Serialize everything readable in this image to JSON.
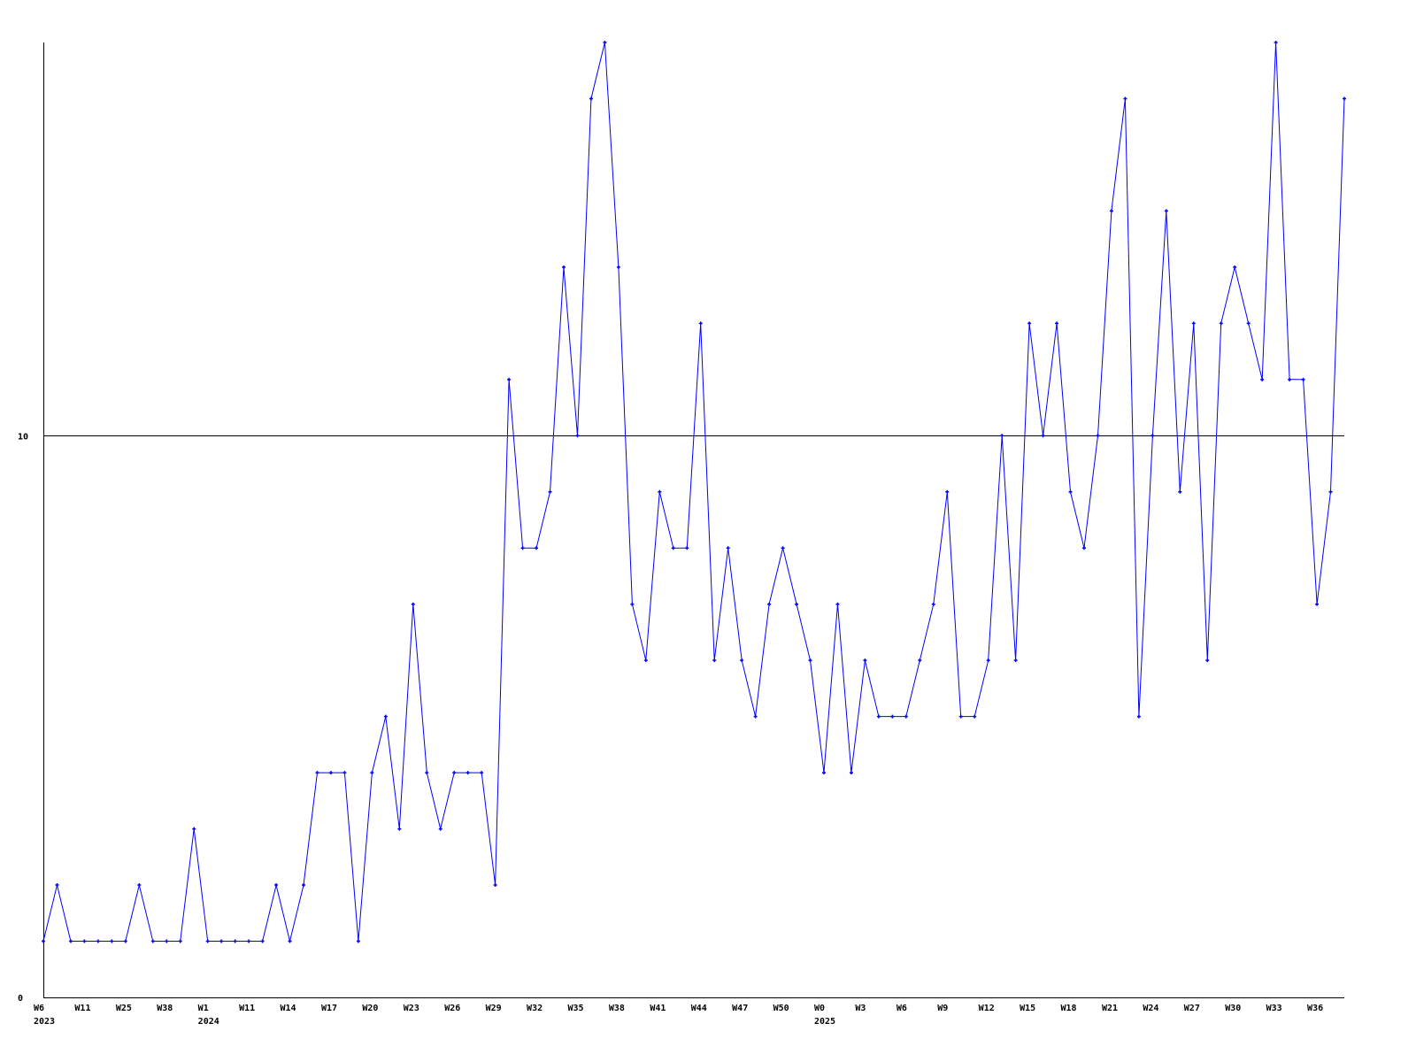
{
  "chart_data": {
    "type": "line",
    "title": "",
    "xlabel": "",
    "ylabel": "",
    "ylim": [
      0,
      17
    ],
    "y_tick_labels": [
      "0",
      "10"
    ],
    "y_ticks": [
      0,
      10
    ],
    "reference_line": 10,
    "grid": false,
    "line_color": "#0000ff",
    "axis_color": "#000000",
    "x_tick_labels": [
      "W6",
      "W11",
      "W25",
      "W38",
      "W1",
      "W11",
      "W14",
      "W17",
      "W20",
      "W23",
      "W26",
      "W29",
      "W32",
      "W35",
      "W38",
      "W41",
      "W44",
      "W47",
      "W50",
      "W0",
      "W3",
      "W6",
      "W9",
      "W12",
      "W15",
      "W18",
      "W21",
      "W24",
      "W27",
      "W30",
      "W33",
      "W36"
    ],
    "x_tick_every": 3,
    "year_labels": [
      {
        "label": "2023",
        "tick": 0
      },
      {
        "label": "2024",
        "tick": 4
      },
      {
        "label": "2025",
        "tick": 19
      }
    ],
    "values": [
      1,
      2,
      1,
      1,
      1,
      1,
      1,
      2,
      1,
      1,
      1,
      3,
      1,
      1,
      1,
      1,
      1,
      2,
      1,
      2,
      4,
      4,
      4,
      1,
      4,
      5,
      3,
      7,
      4,
      3,
      4,
      4,
      4,
      2,
      11,
      8,
      8,
      9,
      13,
      10,
      16,
      17,
      13,
      7,
      6,
      9,
      8,
      8,
      12,
      6,
      8,
      6,
      5,
      7,
      8,
      7,
      6,
      4,
      7,
      4,
      6,
      5,
      5,
      5,
      6,
      7,
      9,
      5,
      5,
      6,
      10,
      6,
      12,
      10,
      12,
      9,
      8,
      10,
      14,
      16,
      5,
      10,
      14,
      9,
      12,
      6,
      12,
      13,
      12,
      11,
      17,
      11,
      11,
      7,
      9,
      16
    ]
  }
}
